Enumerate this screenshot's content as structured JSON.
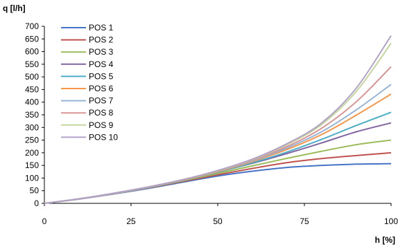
{
  "chart_data": {
    "type": "line",
    "title": "",
    "xlabel": "h [%]",
    "ylabel": "q [l/h]",
    "xlim": [
      0,
      100
    ],
    "ylim": [
      0,
      700
    ],
    "x_ticks": [
      "0",
      "25",
      "50",
      "75",
      "100"
    ],
    "y_ticks": [
      "0",
      "50",
      "100",
      "150",
      "200",
      "250",
      "300",
      "350",
      "400",
      "450",
      "500",
      "550",
      "600",
      "650",
      "700"
    ],
    "grid": false,
    "legend_position": "top-left",
    "x": [
      0,
      10,
      20,
      30,
      40,
      50,
      60,
      70,
      80,
      90,
      100
    ],
    "series": [
      {
        "name": "POS 1",
        "color": "#4472C4",
        "values": [
          0,
          17,
          37,
          59,
          84,
          108,
          127,
          142,
          150,
          155,
          157
        ]
      },
      {
        "name": "POS 2",
        "color": "#C0504D",
        "values": [
          0,
          17,
          38,
          61,
          87,
          113,
          138,
          161,
          177,
          189,
          200
        ]
      },
      {
        "name": "POS 3",
        "color": "#9BBB59",
        "values": [
          0,
          17,
          38,
          62,
          89,
          118,
          148,
          178,
          206,
          232,
          250
        ]
      },
      {
        "name": "POS 4",
        "color": "#8064A2",
        "values": [
          0,
          18,
          40,
          65,
          93,
          124,
          158,
          197,
          239,
          283,
          318
        ]
      },
      {
        "name": "POS 5",
        "color": "#4BACC6",
        "values": [
          0,
          17,
          39,
          63,
          91,
          123,
          160,
          203,
          253,
          308,
          360
        ]
      },
      {
        "name": "POS 6",
        "color": "#F79646",
        "values": [
          0,
          17,
          39,
          64,
          92,
          125,
          165,
          213,
          272,
          349,
          432
        ]
      },
      {
        "name": "POS 7",
        "color": "#95B3D7",
        "values": [
          0,
          17,
          39,
          64,
          93,
          127,
          168,
          219,
          283,
          370,
          470
        ]
      },
      {
        "name": "POS 8",
        "color": "#D99694",
        "values": [
          0,
          17,
          39,
          64,
          93,
          128,
          171,
          225,
          297,
          402,
          540
        ]
      },
      {
        "name": "POS 9",
        "color": "#C3D69B",
        "values": [
          0,
          17,
          39,
          65,
          94,
          129,
          174,
          232,
          312,
          443,
          633
        ]
      },
      {
        "name": "POS 10",
        "color": "#B3A2C7",
        "values": [
          0,
          17,
          39,
          65,
          94,
          130,
          175,
          236,
          318,
          456,
          663
        ]
      }
    ]
  }
}
